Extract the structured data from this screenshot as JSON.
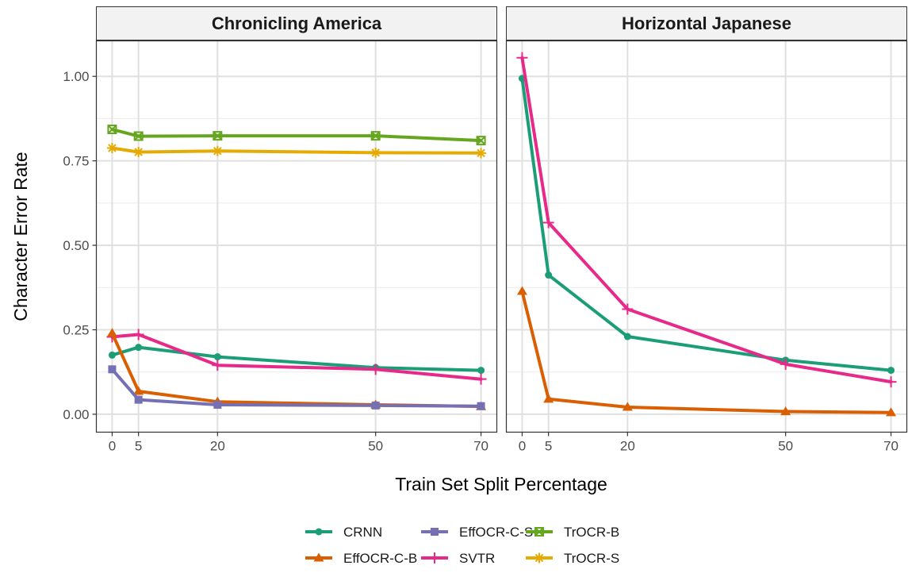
{
  "chart_data": {
    "type": "line",
    "xlabel": "Train Set Split Percentage",
    "ylabel": "Character Error Rate",
    "x_ticks": [
      0,
      5,
      20,
      50,
      70
    ],
    "y_ticks": [
      "0.00",
      "0.25",
      "0.50",
      "0.75",
      "1.00"
    ],
    "xlim": [
      -3,
      73
    ],
    "ylim": [
      -0.053,
      1.105
    ],
    "grid": true,
    "legend_position": "bottom",
    "series_styles": {
      "CRNN": {
        "color": "#1b9e77",
        "marker": "circle"
      },
      "EffOCR-C-B": {
        "color": "#d95f02",
        "marker": "triangle"
      },
      "EffOCR-C-S": {
        "color": "#7570b3",
        "marker": "square"
      },
      "SVTR": {
        "color": "#e7298a",
        "marker": "plus"
      },
      "TrOCR-B": {
        "color": "#66a61e",
        "marker": "square-x"
      },
      "TrOCR-S": {
        "color": "#e6ab02",
        "marker": "asterisk"
      }
    },
    "legend_order": [
      [
        "CRNN",
        "EffOCR-C-B"
      ],
      [
        "EffOCR-C-S",
        "SVTR"
      ],
      [
        "TrOCR-B",
        "TrOCR-S"
      ]
    ],
    "panels": [
      {
        "title": "Chronicling America",
        "series": [
          {
            "name": "TrOCR-B",
            "x": [
              0,
              5,
              20,
              50,
              70
            ],
            "values": [
              0.843,
              0.823,
              0.824,
              0.824,
              0.81
            ]
          },
          {
            "name": "TrOCR-S",
            "x": [
              0,
              5,
              20,
              50,
              70
            ],
            "values": [
              0.788,
              0.776,
              0.779,
              0.774,
              0.773
            ]
          },
          {
            "name": "CRNN",
            "x": [
              0,
              5,
              20,
              50,
              70
            ],
            "values": [
              0.175,
              0.198,
              0.17,
              0.138,
              0.13
            ]
          },
          {
            "name": "SVTR",
            "x": [
              0,
              5,
              20,
              50,
              70
            ],
            "values": [
              0.229,
              0.236,
              0.145,
              0.133,
              0.104
            ]
          },
          {
            "name": "EffOCR-C-B",
            "x": [
              0,
              5,
              20,
              50,
              70
            ],
            "values": [
              0.24,
              0.068,
              0.037,
              0.028,
              0.023
            ]
          },
          {
            "name": "EffOCR-C-S",
            "x": [
              0,
              5,
              20,
              50,
              70
            ],
            "values": [
              0.133,
              0.043,
              0.028,
              0.026,
              0.024
            ]
          }
        ]
      },
      {
        "title": "Horizontal Japanese",
        "series": [
          {
            "name": "CRNN",
            "x": [
              0,
              5,
              20,
              50,
              70
            ],
            "values": [
              0.994,
              0.412,
              0.23,
              0.16,
              0.13
            ]
          },
          {
            "name": "SVTR",
            "x": [
              0,
              5,
              20,
              50,
              70
            ],
            "values": [
              1.055,
              0.567,
              0.311,
              0.148,
              0.096
            ]
          },
          {
            "name": "EffOCR-C-B",
            "x": [
              0,
              5,
              20,
              50,
              70
            ],
            "values": [
              0.364,
              0.045,
              0.021,
              0.008,
              0.005
            ]
          }
        ]
      }
    ]
  }
}
